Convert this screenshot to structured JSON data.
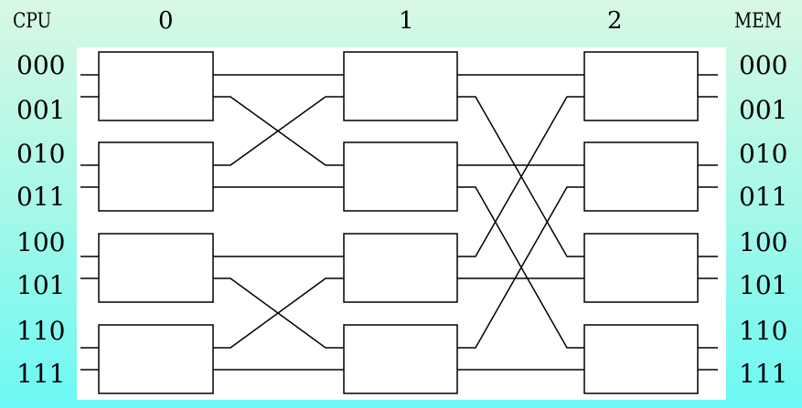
{
  "header": {
    "left": "CPU",
    "stages": [
      "0",
      "1",
      "2"
    ],
    "right": "MEM"
  },
  "cpu_addresses": [
    "000",
    "001",
    "010",
    "011",
    "100",
    "101",
    "110",
    "111"
  ],
  "mem_addresses": [
    "000",
    "001",
    "010",
    "011",
    "100",
    "101",
    "110",
    "111"
  ]
}
